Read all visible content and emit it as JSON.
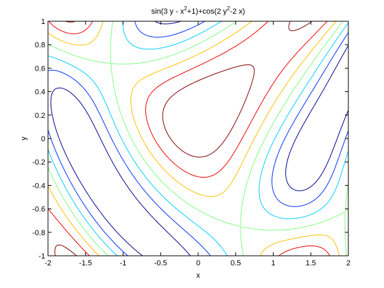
{
  "chart_data": {
    "type": "contour",
    "title": [
      "sin(3 y - x",
      "2",
      "+1)+cos(2 y",
      "2",
      "-2 x)"
    ],
    "xlabel": "x",
    "ylabel": "y",
    "xlim": [
      -2,
      2
    ],
    "ylim": [
      -1,
      1
    ],
    "xticks": [
      -2,
      -1.5,
      -1,
      -0.5,
      0,
      0.5,
      1,
      1.5,
      2
    ],
    "yticks": [
      -1,
      -0.8,
      -0.6,
      -0.4,
      -0.2,
      0,
      0.2,
      0.4,
      0.6,
      0.8,
      1
    ],
    "levels": [
      -1.5,
      -1,
      -0.5,
      0,
      0.5,
      1,
      1.5
    ],
    "colors": [
      "#00008f",
      "#0030ff",
      "#00cfff",
      "#80ff80",
      "#ffbf00",
      "#ef0000",
      "#800000"
    ]
  }
}
